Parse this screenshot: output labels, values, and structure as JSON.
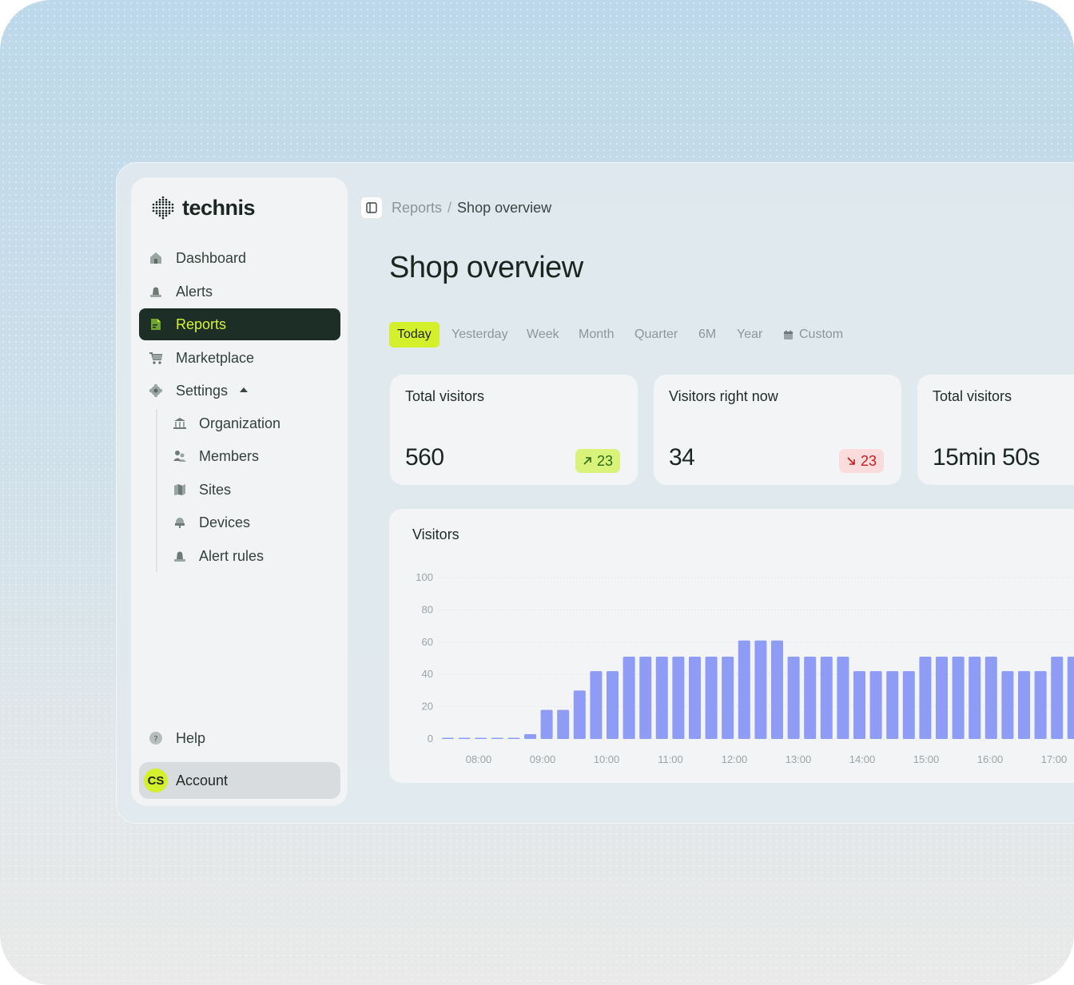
{
  "brand": {
    "name": "technis"
  },
  "sidebar": {
    "items": [
      {
        "label": "Dashboard",
        "icon": "home-icon"
      },
      {
        "label": "Alerts",
        "icon": "bell-icon"
      },
      {
        "label": "Reports",
        "icon": "report-icon",
        "active": true
      },
      {
        "label": "Marketplace",
        "icon": "cart-icon"
      },
      {
        "label": "Settings",
        "icon": "gear-icon",
        "expanded": true
      }
    ],
    "settings_children": [
      {
        "label": "Organization",
        "icon": "building-icon"
      },
      {
        "label": "Members",
        "icon": "users-icon"
      },
      {
        "label": "Sites",
        "icon": "map-icon"
      },
      {
        "label": "Devices",
        "icon": "device-icon"
      },
      {
        "label": "Alert rules",
        "icon": "alert-rule-icon"
      }
    ],
    "help": {
      "label": "Help",
      "icon": "help-icon"
    },
    "account": {
      "label": "Account",
      "initials": "CS"
    }
  },
  "breadcrumb": {
    "parent": "Reports",
    "separator": "/",
    "current": "Shop overview"
  },
  "page": {
    "title": "Shop overview"
  },
  "tabs": {
    "items": [
      "Today",
      "Yesterday",
      "Week",
      "Month",
      "Quarter",
      "6M",
      "Year",
      "Custom"
    ],
    "active": "Today"
  },
  "stats": [
    {
      "label": "Total visitors",
      "value": "560",
      "delta": "23",
      "trend": "up"
    },
    {
      "label": "Visitors right now",
      "value": "34",
      "delta": "23",
      "trend": "down"
    },
    {
      "label": "Total visitors",
      "value": "15min 50s"
    }
  ],
  "colors": {
    "accent": "#d4ef2b",
    "sidebar_active_bg": "#1d2e26",
    "bar": "#8f9cf5",
    "up_bg": "#d8f27a",
    "down_bg": "#fbdcdc"
  },
  "chart_data": {
    "type": "bar",
    "title": "Visitors",
    "ylim": [
      0,
      100
    ],
    "yticks": [
      0,
      20,
      40,
      60,
      80,
      100
    ],
    "xtick_labels": [
      "08:00",
      "09:00",
      "10:00",
      "11:00",
      "12:00",
      "13:00",
      "14:00",
      "15:00",
      "16:00",
      "17:00"
    ],
    "grid": true,
    "values": [
      0,
      0,
      0,
      0,
      0,
      3,
      18,
      18,
      30,
      42,
      42,
      51,
      51,
      51,
      51,
      51,
      51,
      51,
      61,
      61,
      61,
      51,
      51,
      51,
      51,
      42,
      42,
      42,
      42,
      51,
      51,
      51,
      51,
      51,
      42,
      42,
      42,
      51,
      51
    ]
  }
}
